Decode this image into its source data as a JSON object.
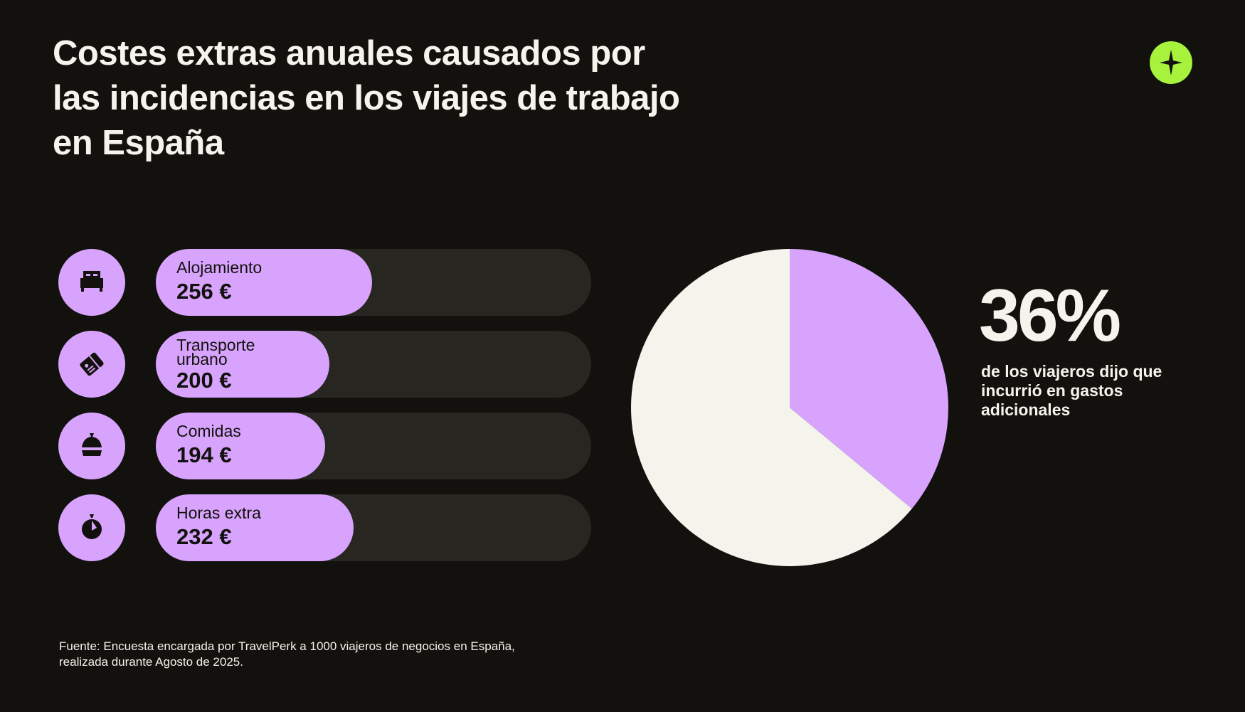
{
  "title_lines": [
    "Costes extras anuales causados por",
    "las incidencias en los viajes de trabajo",
    "en España"
  ],
  "logo": {
    "icon": "plus-star-icon",
    "color": "#a6f23c"
  },
  "colors": {
    "background": "#12110d",
    "accent": "#d7a3fc",
    "track": "#272620",
    "pie_rest": "#f4f3ec"
  },
  "chart_data": [
    {
      "type": "bar",
      "orientation": "horizontal",
      "categories": [
        "Alojamiento",
        "Transporte urbano",
        "Comidas",
        "Horas extra"
      ],
      "category_lines": [
        [
          "Alojamiento"
        ],
        [
          "Transporte",
          "urbano"
        ],
        [
          "Comidas"
        ],
        [
          "Horas extra"
        ]
      ],
      "values": [
        256,
        200,
        194,
        232
      ],
      "value_labels": [
        "256 €",
        "200 €",
        "194 €",
        "232 €"
      ],
      "icons": [
        "bed-icon",
        "ticket-icon",
        "food-cloche-icon",
        "stopwatch-icon"
      ],
      "unit": "€"
    },
    {
      "type": "pie",
      "slices": [
        {
          "name": "incurrió en gastos adicionales",
          "value": 36
        },
        {
          "name": "resto",
          "value": 64
        }
      ],
      "headline": "36%",
      "caption_lines": [
        "de los viajeros dijo que",
        "incurrió en gastos",
        "adicionales"
      ]
    }
  ],
  "footnote_lines": [
    "Fuente: Encuesta encargada por TravelPerk a 1000 viajeros de negocios en España,",
    "realizada durante Agosto de 2025."
  ]
}
